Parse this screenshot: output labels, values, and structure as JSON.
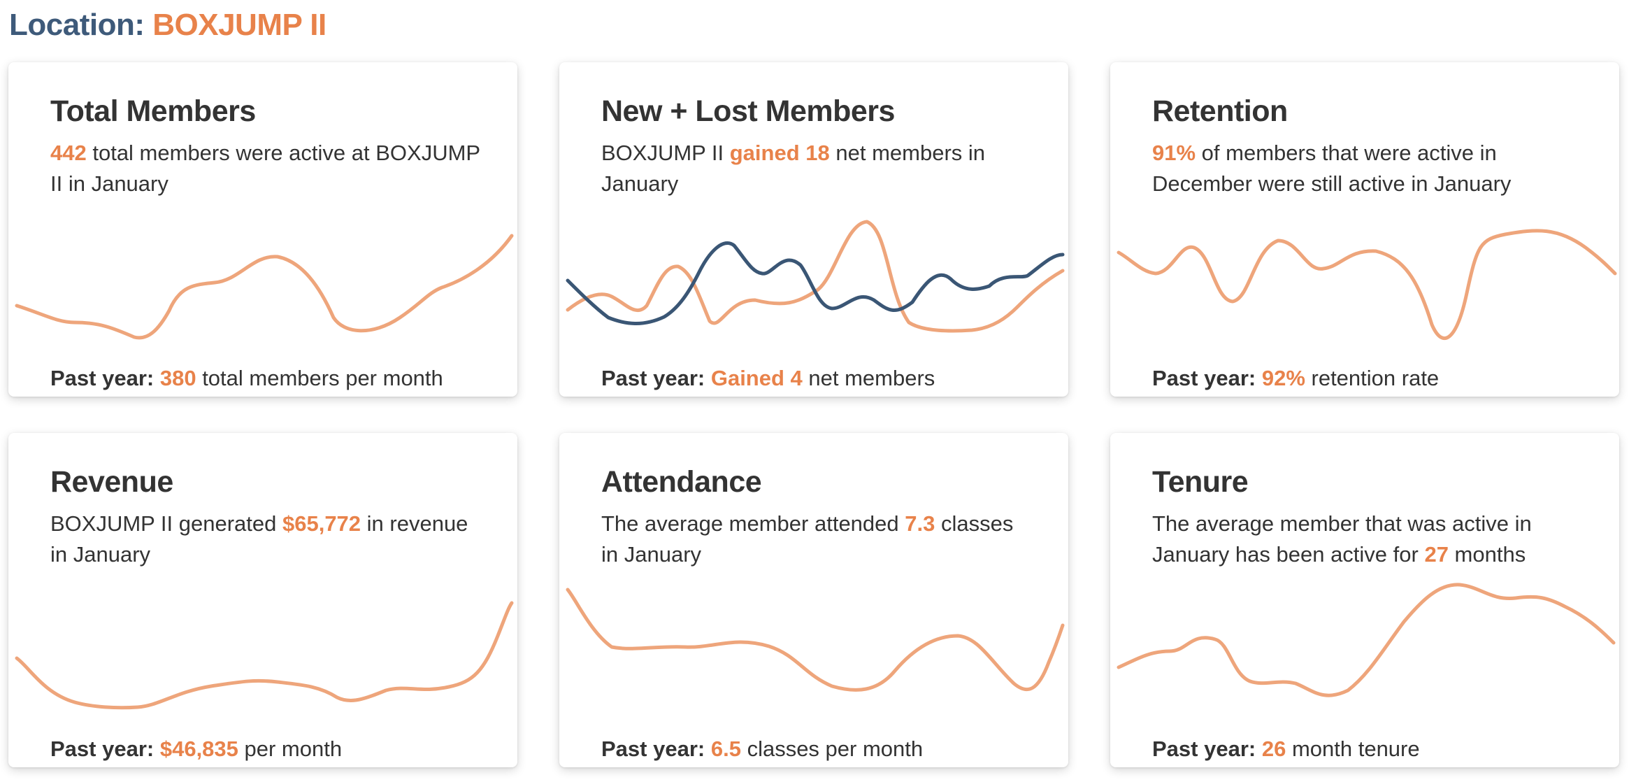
{
  "header": {
    "label": "Location:",
    "location": "BOXJUMP II"
  },
  "colors": {
    "accent": "#e8824a",
    "title_blue": "#3e5a7a",
    "spark_orange": "#eea57b",
    "spark_blue": "#3a5675",
    "text": "#333333"
  },
  "cards": {
    "total_members": {
      "title": "Total Members",
      "desc_value": "442",
      "desc_text": " total members were active at BOXJUMP II in January",
      "foot_label": "Past year:",
      "foot_value": "380",
      "foot_text": " total members per month"
    },
    "new_lost": {
      "title": "New + Lost Members",
      "desc_pre": "BOXJUMP II ",
      "desc_value": "gained 18",
      "desc_text": " net members in January",
      "foot_label": "Past year:",
      "foot_value": "Gained 4",
      "foot_text": " net members"
    },
    "retention": {
      "title": "Retention",
      "desc_value": "91%",
      "desc_text": " of members that were active in December were still active in January",
      "foot_label": "Past year:",
      "foot_value": "92%",
      "foot_text": " retention rate"
    },
    "revenue": {
      "title": "Revenue",
      "desc_pre": "BOXJUMP II generated ",
      "desc_value": "$65,772",
      "desc_text": " in revenue in January",
      "foot_label": "Past year:",
      "foot_value": "$46,835",
      "foot_text": " per month"
    },
    "attendance": {
      "title": "Attendance",
      "desc_pre": "The average member attended ",
      "desc_value": "7.3",
      "desc_text": " classes in January",
      "foot_label": "Past year:",
      "foot_value": "6.5",
      "foot_text": " classes per month"
    },
    "tenure": {
      "title": "Tenure",
      "desc_pre": "The average member that was active in January has been active for ",
      "desc_value": "27",
      "desc_text": " months",
      "foot_label": "Past year:",
      "foot_value": "26",
      "foot_text": " month tenure"
    }
  }
}
